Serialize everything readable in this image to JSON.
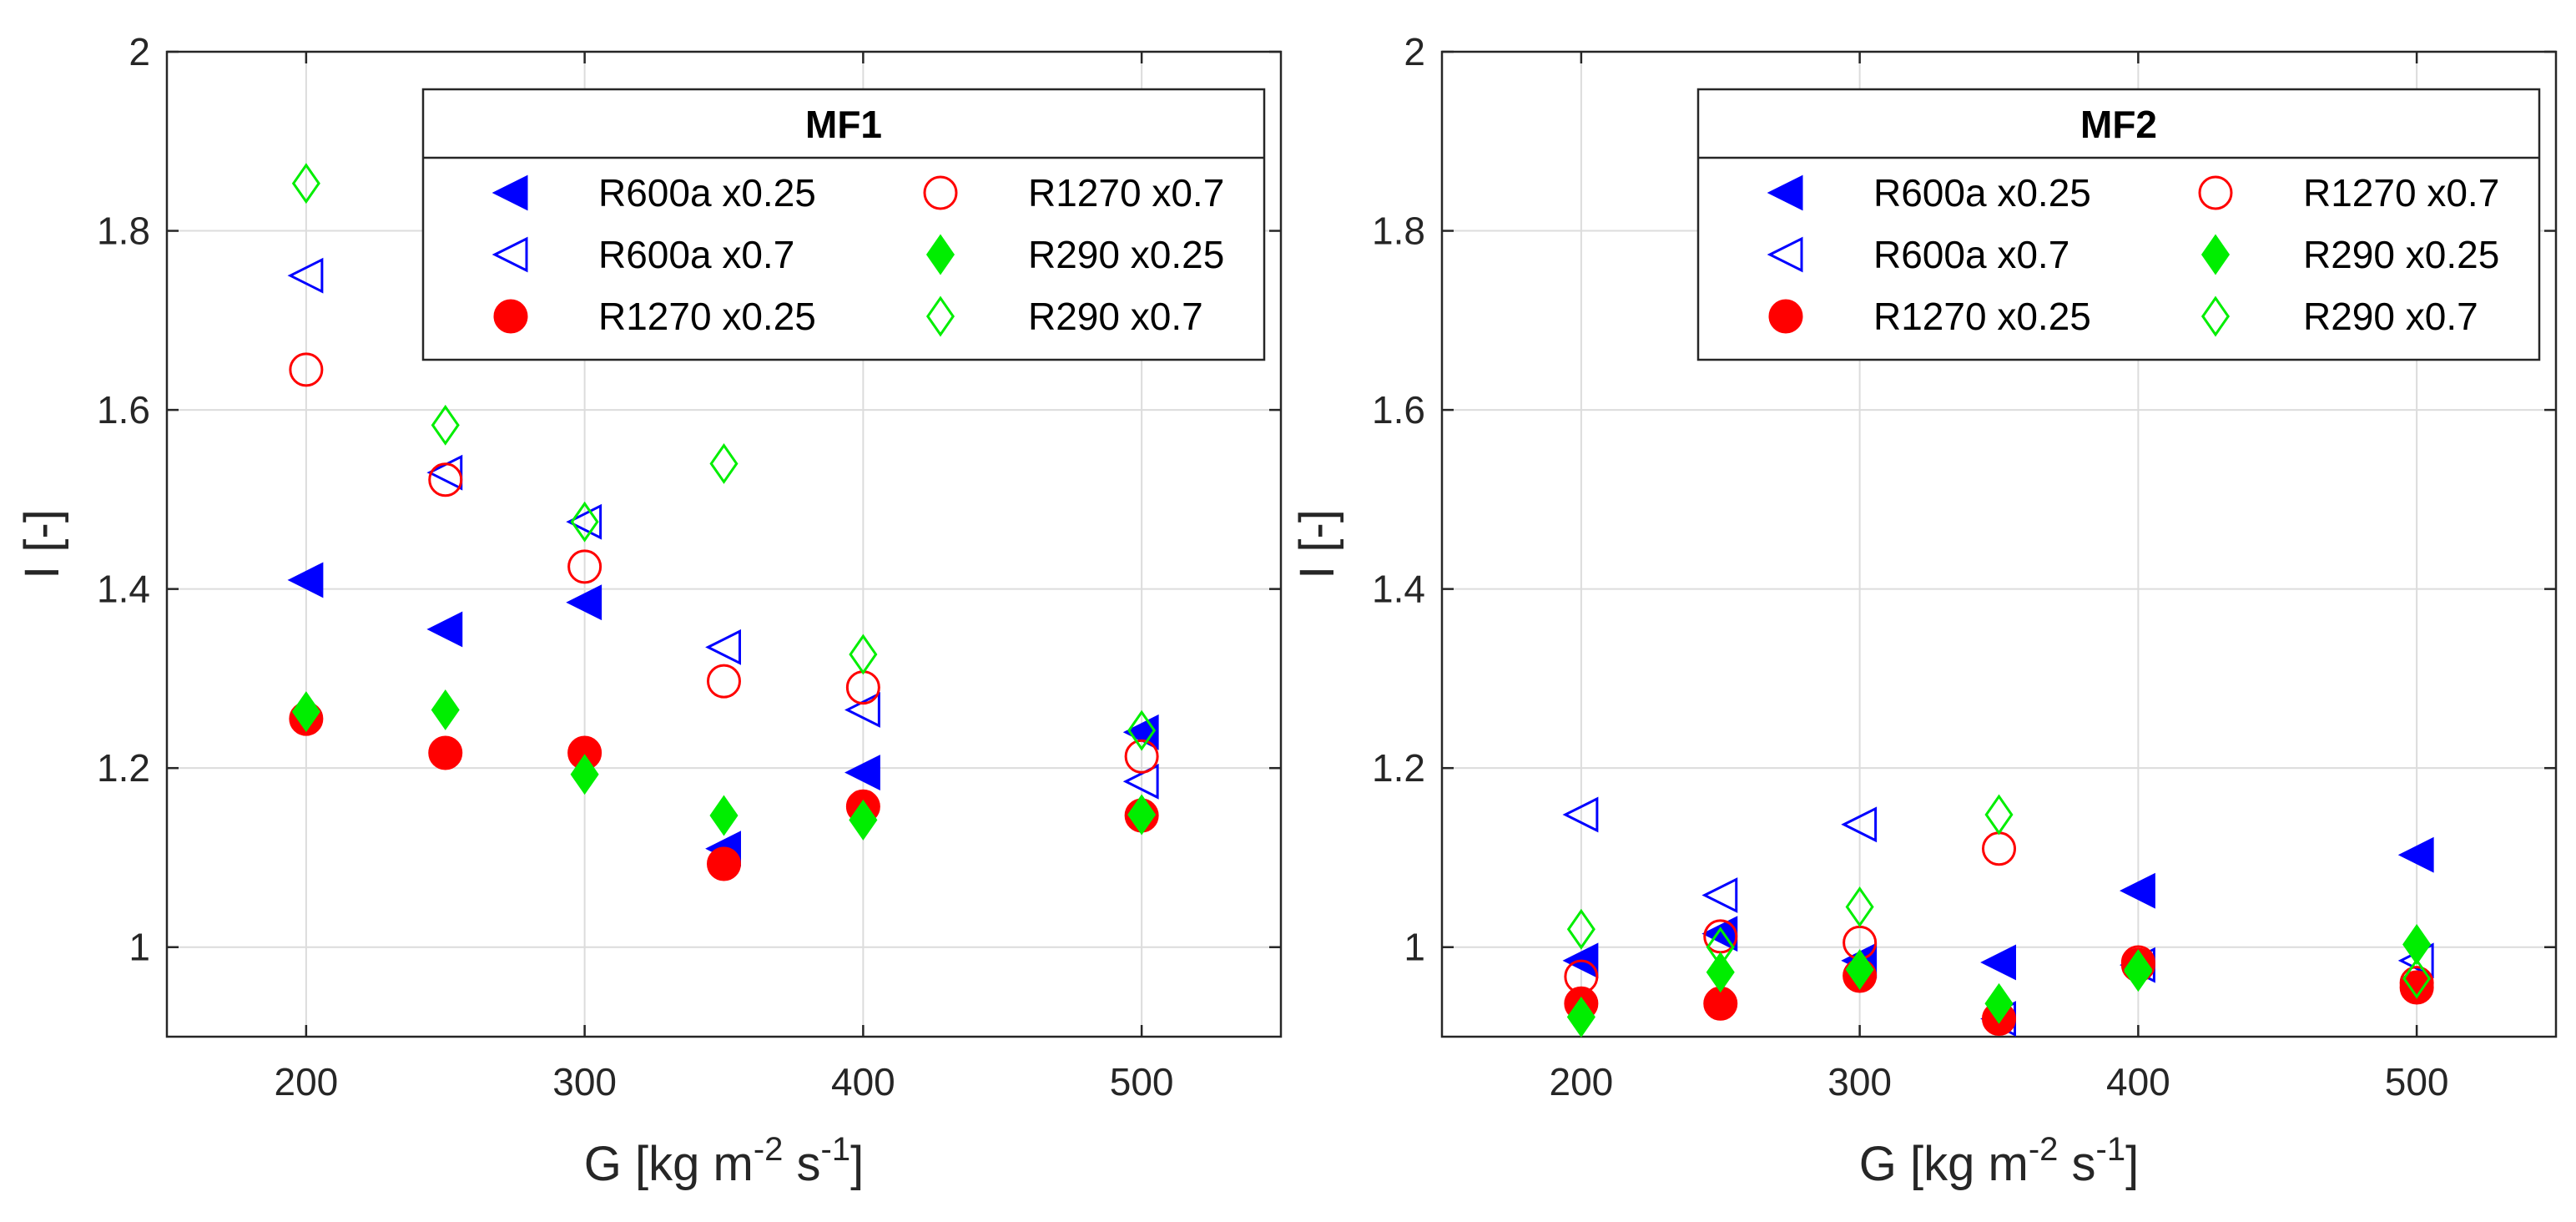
{
  "chart_data": [
    {
      "type": "scatter",
      "title": "MF1",
      "xlabel": "G [kg m",
      "xlabel_sup1": "-2",
      "xlabel_mid": " s",
      "xlabel_sup2": "-1",
      "xlabel_end": "]",
      "ylabel": "I [-]",
      "xlim": [
        150,
        550
      ],
      "ylim": [
        0.9,
        2.0
      ],
      "xticks": [
        200,
        300,
        400,
        500
      ],
      "yticks": [
        1,
        1.2,
        1.4,
        1.6,
        1.8,
        2
      ],
      "ytick_labels": [
        "1",
        "1.2",
        "1.4",
        "1.6",
        "1.8",
        "2"
      ],
      "grid": true,
      "legend_position": "top-right",
      "series": [
        {
          "name": "R600a x0.25",
          "marker": "triangle-left",
          "filled": true,
          "color": "#0000ff",
          "x": [
            200,
            250,
            300,
            350,
            400,
            500
          ],
          "y": [
            1.41,
            1.355,
            1.385,
            1.11,
            1.195,
            1.24
          ]
        },
        {
          "name": "R600a x0.7",
          "marker": "triangle-left",
          "filled": false,
          "color": "#0000ff",
          "x": [
            200,
            250,
            300,
            350,
            400,
            500
          ],
          "y": [
            1.75,
            1.53,
            1.475,
            1.335,
            1.265,
            1.185
          ]
        },
        {
          "name": "R1270 x0.25",
          "marker": "circle",
          "filled": true,
          "color": "#ff0000",
          "x": [
            200,
            250,
            300,
            350,
            400,
            500
          ],
          "y": [
            1.255,
            1.217,
            1.217,
            1.093,
            1.157,
            1.147
          ]
        },
        {
          "name": "R1270 x0.7",
          "marker": "circle",
          "filled": false,
          "color": "#ff0000",
          "x": [
            200,
            250,
            300,
            350,
            400,
            500
          ],
          "y": [
            1.645,
            1.522,
            1.425,
            1.297,
            1.29,
            1.213
          ]
        },
        {
          "name": "R290 x0.25",
          "marker": "diamond",
          "filled": true,
          "color": "#00ee00",
          "x": [
            200,
            250,
            300,
            350,
            400,
            500
          ],
          "y": [
            1.263,
            1.265,
            1.193,
            1.147,
            1.142,
            1.148
          ]
        },
        {
          "name": "R290 x0.7",
          "marker": "diamond",
          "filled": false,
          "color": "#00ee00",
          "x": [
            200,
            250,
            300,
            350,
            400,
            500
          ],
          "y": [
            1.853,
            1.583,
            1.475,
            1.54,
            1.327,
            1.242
          ]
        }
      ]
    },
    {
      "type": "scatter",
      "title": "MF2",
      "xlabel": "G [kg m",
      "xlabel_sup1": "-2",
      "xlabel_mid": " s",
      "xlabel_sup2": "-1",
      "xlabel_end": "]",
      "ylabel": "I [-]",
      "xlim": [
        150,
        550
      ],
      "ylim": [
        0.9,
        2.0
      ],
      "xticks": [
        200,
        300,
        400,
        500
      ],
      "yticks": [
        1,
        1.2,
        1.4,
        1.6,
        1.8,
        2
      ],
      "ytick_labels": [
        "1",
        "1.2",
        "1.4",
        "1.6",
        "1.8",
        "2"
      ],
      "grid": true,
      "legend_position": "top-right",
      "series": [
        {
          "name": "R600a x0.25",
          "marker": "triangle-left",
          "filled": true,
          "color": "#0000ff",
          "x": [
            200,
            250,
            300,
            350,
            400,
            500
          ],
          "y": [
            0.985,
            1.015,
            0.985,
            0.983,
            1.063,
            1.103
          ]
        },
        {
          "name": "R600a x0.7",
          "marker": "triangle-left",
          "filled": false,
          "color": "#0000ff",
          "x": [
            200,
            250,
            300,
            350,
            400,
            500
          ],
          "y": [
            1.148,
            1.058,
            1.137,
            0.92,
            0.98,
            0.985
          ]
        },
        {
          "name": "R1270 x0.25",
          "marker": "circle",
          "filled": true,
          "color": "#ff0000",
          "x": [
            200,
            250,
            300,
            350,
            400,
            500
          ],
          "y": [
            0.937,
            0.937,
            0.968,
            0.92,
            0.98,
            0.955
          ]
        },
        {
          "name": "R1270 x0.7",
          "marker": "circle",
          "filled": false,
          "color": "#ff0000",
          "x": [
            200,
            250,
            300,
            350,
            400,
            500
          ],
          "y": [
            0.967,
            1.012,
            1.005,
            1.11,
            0.983,
            0.96
          ]
        },
        {
          "name": "R290 x0.25",
          "marker": "diamond",
          "filled": true,
          "color": "#00ee00",
          "x": [
            200,
            250,
            300,
            350,
            400,
            500
          ],
          "y": [
            0.922,
            0.972,
            0.975,
            0.937,
            0.973,
            1.003
          ]
        },
        {
          "name": "R290 x0.7",
          "marker": "diamond",
          "filled": false,
          "color": "#00ee00",
          "x": [
            200,
            250,
            300,
            350,
            400,
            500
          ],
          "y": [
            1.02,
            1.0,
            1.045,
            1.148,
            0.975,
            0.965
          ]
        }
      ]
    }
  ]
}
